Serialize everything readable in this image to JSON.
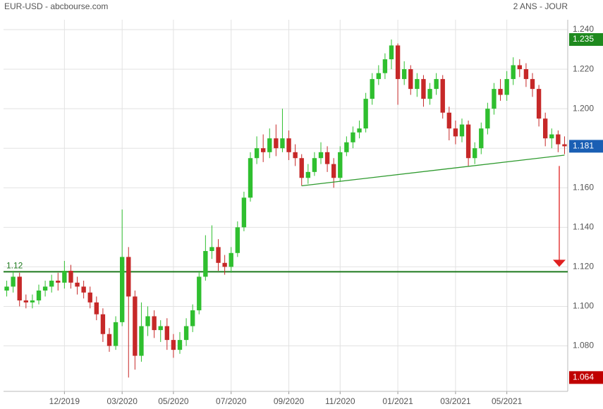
{
  "chart_data": {
    "type": "candlestick",
    "title": "EUR-USD - abcbourse.com",
    "subtitle": "2 ANS - JOUR",
    "categories": [
      null,
      null,
      null,
      null,
      null,
      null,
      null,
      null,
      null,
      "12/2019",
      null,
      null,
      null,
      null,
      null,
      null,
      null,
      null,
      "03/2020",
      null,
      null,
      null,
      null,
      null,
      null,
      null,
      "05/2020",
      null,
      null,
      null,
      null,
      null,
      null,
      null,
      null,
      "07/2020",
      null,
      null,
      null,
      null,
      null,
      null,
      null,
      null,
      "09/2020",
      null,
      null,
      null,
      null,
      null,
      null,
      null,
      "11/2020",
      null,
      null,
      null,
      null,
      null,
      null,
      null,
      null,
      "01/2021",
      null,
      null,
      null,
      null,
      null,
      null,
      null,
      null,
      "03/2021",
      null,
      null,
      null,
      null,
      null,
      null,
      null,
      "05/2021",
      null,
      null,
      null,
      null,
      null,
      null,
      null,
      null,
      null
    ],
    "open": [
      1.108,
      1.11,
      1.115,
      1.103,
      1.102,
      1.103,
      1.108,
      1.11,
      1.113,
      1.112,
      1.118,
      1.112,
      1.11,
      1.107,
      1.102,
      1.096,
      1.086,
      1.08,
      1.092,
      1.125,
      1.105,
      1.075,
      1.09,
      1.095,
      1.088,
      1.09,
      1.083,
      1.078,
      1.083,
      1.09,
      1.098,
      1.115,
      1.128,
      1.13,
      1.122,
      1.12,
      1.127,
      1.14,
      1.155,
      1.175,
      1.18,
      1.178,
      1.185,
      1.18,
      1.185,
      1.178,
      1.175,
      1.165,
      1.168,
      1.175,
      1.178,
      1.172,
      1.165,
      1.178,
      1.183,
      1.188,
      1.19,
      1.205,
      1.215,
      1.218,
      1.225,
      1.232,
      1.215,
      1.22,
      1.21,
      1.215,
      1.205,
      1.21,
      1.215,
      1.198,
      1.19,
      1.186,
      1.192,
      1.175,
      1.18,
      1.19,
      1.2,
      1.21,
      1.207,
      1.215,
      1.222,
      1.22,
      1.215,
      1.21,
      1.195,
      1.185,
      1.187,
      1.182
    ],
    "high": [
      1.113,
      1.118,
      1.117,
      1.106,
      1.106,
      1.111,
      1.113,
      1.116,
      1.117,
      1.123,
      1.121,
      1.115,
      1.113,
      1.11,
      1.105,
      1.099,
      1.089,
      1.095,
      1.149,
      1.13,
      1.108,
      1.102,
      1.1,
      1.098,
      1.093,
      1.094,
      1.086,
      1.087,
      1.094,
      1.101,
      1.118,
      1.136,
      1.141,
      1.134,
      1.126,
      1.13,
      1.143,
      1.158,
      1.178,
      1.186,
      1.187,
      1.19,
      1.192,
      1.2,
      1.189,
      1.182,
      1.177,
      1.172,
      1.178,
      1.183,
      1.181,
      1.175,
      1.181,
      1.186,
      1.191,
      1.194,
      1.208,
      1.218,
      1.222,
      1.228,
      1.235,
      1.233,
      1.224,
      1.222,
      1.218,
      1.217,
      1.213,
      1.218,
      1.217,
      1.201,
      1.194,
      1.195,
      1.194,
      1.183,
      1.193,
      1.203,
      1.213,
      1.215,
      1.219,
      1.226,
      1.225,
      1.223,
      1.218,
      1.212,
      1.198,
      1.19,
      1.189,
      1.186
    ],
    "low": [
      1.105,
      1.107,
      1.1,
      1.099,
      1.099,
      1.101,
      1.105,
      1.107,
      1.108,
      1.109,
      1.109,
      1.106,
      1.104,
      1.099,
      1.093,
      1.082,
      1.077,
      1.078,
      1.09,
      1.064,
      1.068,
      1.072,
      1.085,
      1.084,
      1.082,
      1.078,
      1.074,
      1.076,
      1.08,
      1.087,
      1.096,
      1.113,
      1.124,
      1.118,
      1.116,
      1.117,
      1.125,
      1.138,
      1.153,
      1.172,
      1.173,
      1.175,
      1.176,
      1.178,
      1.174,
      1.171,
      1.161,
      1.162,
      1.166,
      1.172,
      1.168,
      1.16,
      1.163,
      1.176,
      1.18,
      1.185,
      1.188,
      1.202,
      1.212,
      1.215,
      1.22,
      1.202,
      1.212,
      1.207,
      1.206,
      1.201,
      1.202,
      1.207,
      1.195,
      1.184,
      1.182,
      1.183,
      1.171,
      1.172,
      1.177,
      1.187,
      1.197,
      1.204,
      1.204,
      1.212,
      1.216,
      1.211,
      1.206,
      1.191,
      1.181,
      1.18,
      1.178,
      1.177
    ],
    "close": [
      1.11,
      1.115,
      1.103,
      1.102,
      1.103,
      1.108,
      1.11,
      1.113,
      1.112,
      1.118,
      1.112,
      1.11,
      1.107,
      1.102,
      1.096,
      1.086,
      1.08,
      1.092,
      1.125,
      1.105,
      1.075,
      1.09,
      1.095,
      1.088,
      1.09,
      1.083,
      1.078,
      1.083,
      1.09,
      1.098,
      1.115,
      1.128,
      1.13,
      1.122,
      1.12,
      1.127,
      1.14,
      1.155,
      1.175,
      1.18,
      1.178,
      1.185,
      1.18,
      1.185,
      1.178,
      1.175,
      1.165,
      1.168,
      1.175,
      1.178,
      1.172,
      1.165,
      1.178,
      1.183,
      1.188,
      1.19,
      1.205,
      1.215,
      1.218,
      1.225,
      1.232,
      1.215,
      1.22,
      1.21,
      1.215,
      1.205,
      1.21,
      1.215,
      1.198,
      1.19,
      1.186,
      1.192,
      1.175,
      1.18,
      1.19,
      1.2,
      1.21,
      1.207,
      1.215,
      1.222,
      1.22,
      1.215,
      1.21,
      1.195,
      1.185,
      1.187,
      1.182,
      1.181
    ],
    "up_color": "#2fbf2f",
    "down_color": "#c62828",
    "ylim": [
      1.057,
      1.245
    ],
    "yticks": [
      {
        "value": 1.08,
        "label": "1.080"
      },
      {
        "value": 1.1,
        "label": "1.100"
      },
      {
        "value": 1.12,
        "label": "1.120"
      },
      {
        "value": 1.14,
        "label": "1.140"
      },
      {
        "value": 1.16,
        "label": "1.160"
      },
      {
        "value": 1.18,
        "label": "1.180"
      },
      {
        "value": 1.2,
        "label": "1.200"
      },
      {
        "value": 1.22,
        "label": "1.220"
      },
      {
        "value": 1.24,
        "label": "1.240"
      }
    ],
    "grid": true,
    "level": {
      "value": 1.1175,
      "label": "1.12",
      "color": "#1e7a1e"
    },
    "trendline": {
      "x": [
        46,
        87
      ],
      "y": [
        1.161,
        1.1765
      ],
      "color": "#2e9a2e"
    },
    "arrow": {
      "from": 1.171,
      "to": 1.12,
      "color": "#e02020"
    },
    "badges": [
      {
        "value": 1.235,
        "color": "#1e8a1e"
      },
      {
        "value": 1.181,
        "color": "#1a5fb4"
      },
      {
        "value": 1.064,
        "color": "#c00000"
      }
    ]
  }
}
